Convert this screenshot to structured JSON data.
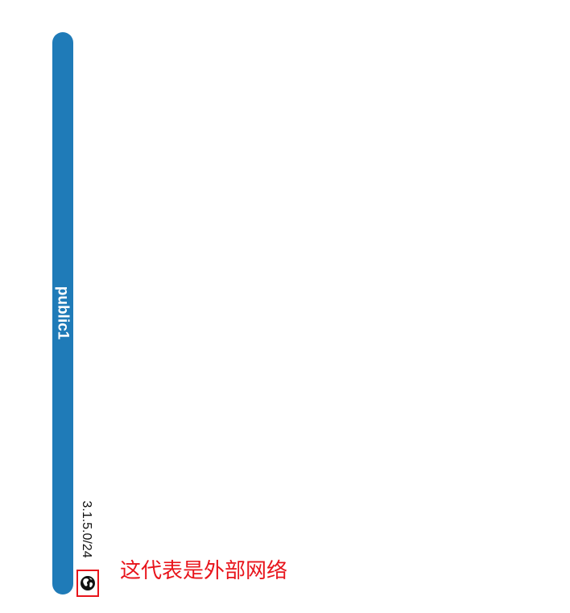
{
  "network": {
    "name": "public1",
    "cidr": "3.1.5.0/24",
    "bar_color": "#1f7bb8",
    "icon": "globe-icon",
    "external": true
  },
  "annotation": {
    "text": "这代表是外部网络",
    "color": "#e8141b"
  }
}
